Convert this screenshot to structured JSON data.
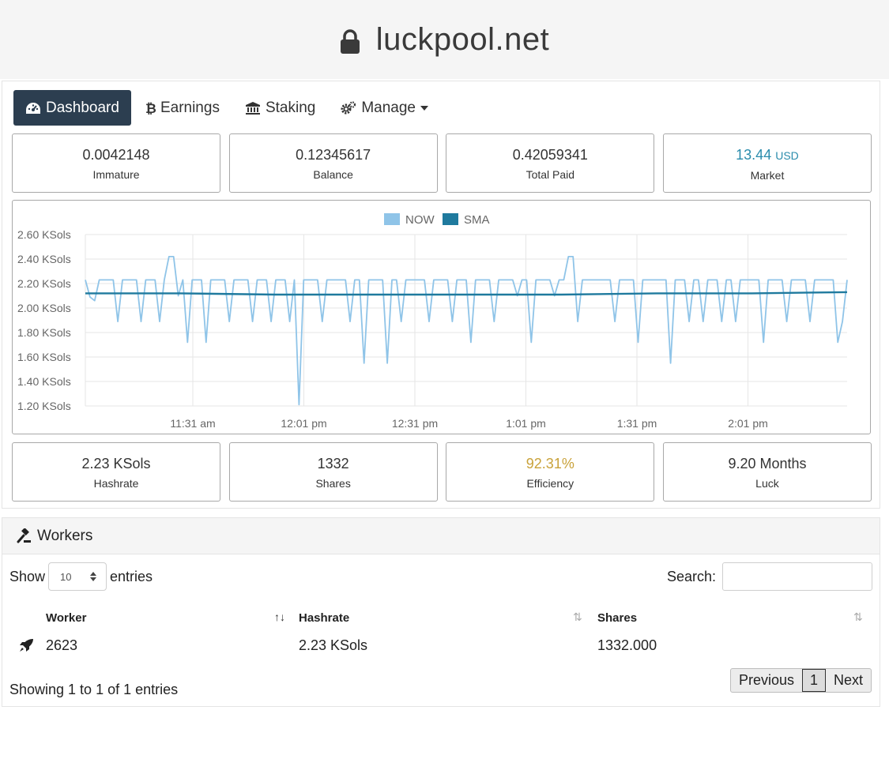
{
  "browser": {
    "url": "luckpool.net",
    "lock_icon": "lock-icon"
  },
  "nav": {
    "items": [
      {
        "label": "Dashboard",
        "icon": "dashboard-icon",
        "active": true
      },
      {
        "label": "Earnings",
        "icon": "bitcoin-icon"
      },
      {
        "label": "Staking",
        "icon": "bank-icon"
      },
      {
        "label": "Manage",
        "icon": "cogs-icon",
        "dropdown": true
      }
    ]
  },
  "stats_top": [
    {
      "value": "0.0042148",
      "label": "Immature"
    },
    {
      "value": "0.12345617",
      "label": "Balance"
    },
    {
      "value": "0.42059341",
      "label": "Total Paid"
    },
    {
      "value": "13.44",
      "unit": "USD",
      "label": "Market",
      "color": "#2a8cac"
    }
  ],
  "chart_data": {
    "type": "line",
    "legend": [
      {
        "name": "NOW",
        "color": "#8fc4e8"
      },
      {
        "name": "SMA",
        "color": "#1f7a9e"
      }
    ],
    "legend_position": "top-center",
    "y_ticks": [
      "2.60 KSols",
      "2.40 KSols",
      "2.20 KSols",
      "2.00 KSols",
      "1.80 KSols",
      "1.60 KSols",
      "1.40 KSols",
      "1.20 KSols"
    ],
    "ylim": [
      1.2,
      2.6
    ],
    "x_ticks": [
      "11:31 am",
      "12:01 pm",
      "12:31 pm",
      "1:01 pm",
      "1:31 pm",
      "2:01 pm"
    ],
    "grid": true,
    "series": [
      {
        "name": "NOW",
        "values": [
          2.23,
          2.09,
          2.06,
          2.23,
          2.23,
          2.23,
          2.23,
          1.89,
          2.23,
          2.23,
          2.23,
          2.23,
          1.89,
          2.23,
          2.23,
          2.23,
          1.89,
          2.23,
          2.42,
          2.42,
          2.1,
          2.23,
          1.72,
          2.23,
          2.23,
          2.23,
          1.72,
          2.23,
          2.23,
          2.23,
          2.23,
          1.89,
          2.23,
          2.23,
          2.23,
          2.23,
          1.89,
          2.23,
          2.23,
          2.23,
          1.89,
          2.23,
          2.23,
          2.23,
          1.89,
          2.23,
          1.21,
          2.23,
          2.23,
          2.23,
          2.23,
          1.89,
          2.23,
          2.23,
          2.23,
          2.23,
          2.23,
          1.89,
          2.23,
          2.23,
          1.55,
          2.23,
          2.23,
          2.23,
          2.23,
          1.55,
          2.23,
          2.23,
          1.89,
          2.23,
          2.23,
          2.23,
          2.23,
          2.23,
          1.89,
          2.23,
          2.23,
          2.23,
          2.23,
          1.89,
          2.23,
          2.23,
          2.23,
          1.72,
          2.23,
          2.23,
          2.23,
          2.23,
          1.89,
          2.23,
          2.23,
          2.23,
          2.23,
          2.1,
          2.23,
          2.23,
          1.72,
          2.23,
          2.23,
          2.23,
          2.23,
          2.1,
          2.23,
          2.23,
          2.42,
          2.42,
          1.89,
          2.23,
          2.23,
          2.23,
          2.23,
          2.23,
          2.23,
          2.23,
          1.89,
          2.23,
          2.23,
          2.23,
          2.23,
          1.72,
          2.23,
          2.23,
          2.23,
          2.23,
          2.23,
          2.23,
          1.55,
          2.23,
          2.23,
          2.23,
          1.89,
          2.23,
          2.23,
          1.89,
          2.23,
          2.23,
          2.23,
          1.89,
          2.23,
          2.23,
          1.89,
          2.23,
          2.23,
          2.23,
          2.23,
          2.23,
          1.72,
          2.23,
          2.23,
          2.23,
          2.23,
          1.89,
          2.23,
          2.23,
          2.23,
          2.23,
          1.89,
          2.23,
          2.23,
          2.23,
          2.23,
          2.23,
          1.72,
          1.89,
          2.23
        ]
      },
      {
        "name": "SMA",
        "values": [
          2.12,
          2.12,
          2.11,
          2.11,
          2.11,
          2.11,
          2.12,
          2.12,
          2.13
        ]
      }
    ]
  },
  "stats_bottom": [
    {
      "value": "2.23 KSols",
      "label": "Hashrate"
    },
    {
      "value": "1332",
      "label": "Shares"
    },
    {
      "value": "92.31%",
      "label": "Efficiency",
      "color": "#c9a23a"
    },
    {
      "value": "9.20 Months",
      "label": "Luck"
    }
  ],
  "workers": {
    "title": "Workers",
    "show_label": "Show",
    "entries_select": "10",
    "entries_label": "entries",
    "search_label": "Search:",
    "search_value": "",
    "columns": [
      "Worker",
      "Hashrate",
      "Shares"
    ],
    "rows": [
      {
        "worker": "2623",
        "hashrate": "2.23 KSols",
        "shares": "1332.000"
      }
    ],
    "info": "Showing 1 to 1 of 1 entries",
    "pagination": {
      "previous": "Previous",
      "current": "1",
      "next": "Next"
    }
  }
}
